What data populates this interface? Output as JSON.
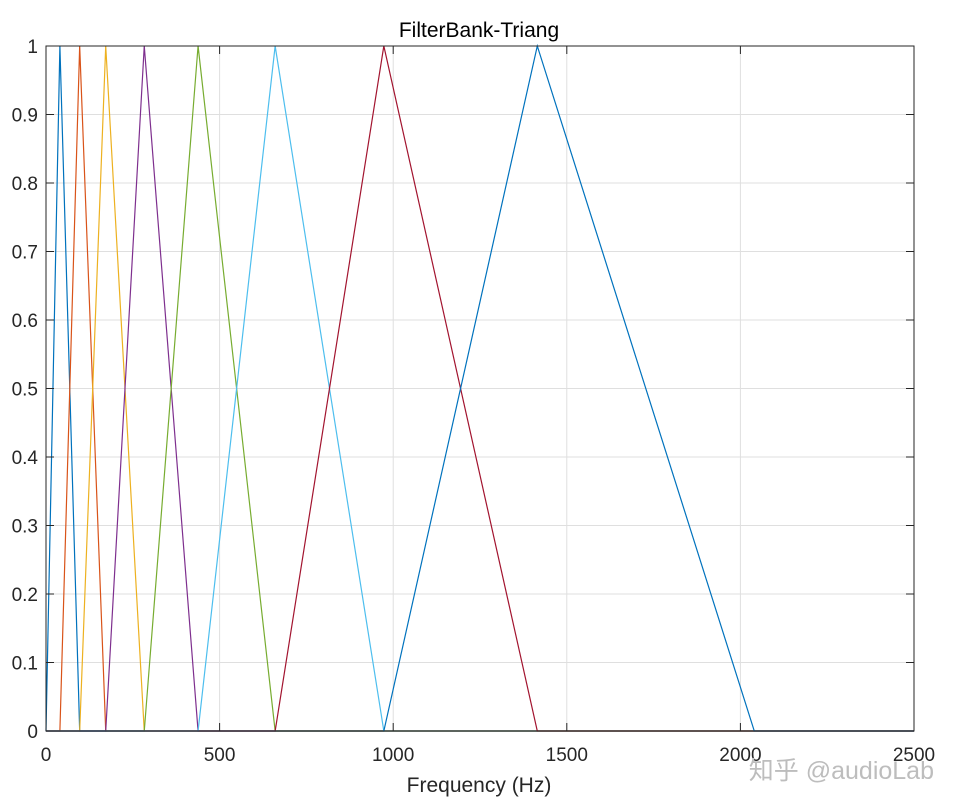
{
  "chart_data": {
    "type": "line",
    "title": "FilterBank-Triang",
    "xlabel": "Frequency (Hz)",
    "ylabel": "",
    "xlim": [
      0,
      2500
    ],
    "ylim": [
      0,
      1
    ],
    "xticks": [
      0,
      500,
      1000,
      1500,
      2000,
      2500
    ],
    "yticks": [
      0,
      0.1,
      0.2,
      0.3,
      0.4,
      0.5,
      0.6,
      0.7,
      0.8,
      0.9,
      1
    ],
    "xtick_labels": [
      "0",
      "500",
      "1000",
      "1500",
      "2000",
      "2500"
    ],
    "ytick_labels": [
      "0",
      "0.1",
      "0.2",
      "0.3",
      "0.4",
      "0.5",
      "0.6",
      "0.7",
      "0.8",
      "0.9",
      "1"
    ],
    "grid": true,
    "legend": null,
    "series": [
      {
        "color": "#0072BD",
        "x": [
          0,
          0,
          40,
          97,
          2500
        ],
        "y": [
          0,
          0,
          1,
          0,
          0
        ]
      },
      {
        "color": "#D95319",
        "x": [
          0,
          40,
          97,
          172,
          2500
        ],
        "y": [
          0,
          0,
          1,
          0,
          0
        ]
      },
      {
        "color": "#EDB120",
        "x": [
          0,
          97,
          172,
          283,
          2500
        ],
        "y": [
          0,
          0,
          1,
          0,
          0
        ]
      },
      {
        "color": "#7E2F8E",
        "x": [
          0,
          172,
          283,
          438,
          2500
        ],
        "y": [
          0,
          0,
          1,
          0,
          0
        ]
      },
      {
        "color": "#77AC30",
        "x": [
          0,
          283,
          438,
          660,
          2500
        ],
        "y": [
          0,
          0,
          1,
          0,
          0
        ]
      },
      {
        "color": "#4DBEEE",
        "x": [
          0,
          438,
          660,
          973,
          2500
        ],
        "y": [
          0,
          0,
          1,
          0,
          0
        ]
      },
      {
        "color": "#A2142F",
        "x": [
          0,
          660,
          973,
          1415,
          2500
        ],
        "y": [
          0,
          0,
          1,
          0,
          0
        ]
      },
      {
        "color": "#0072BD",
        "x": [
          0,
          973,
          1415,
          2040,
          2500
        ],
        "y": [
          0,
          0,
          1,
          0,
          0
        ]
      }
    ]
  },
  "watermark": "知乎 @audioLab"
}
